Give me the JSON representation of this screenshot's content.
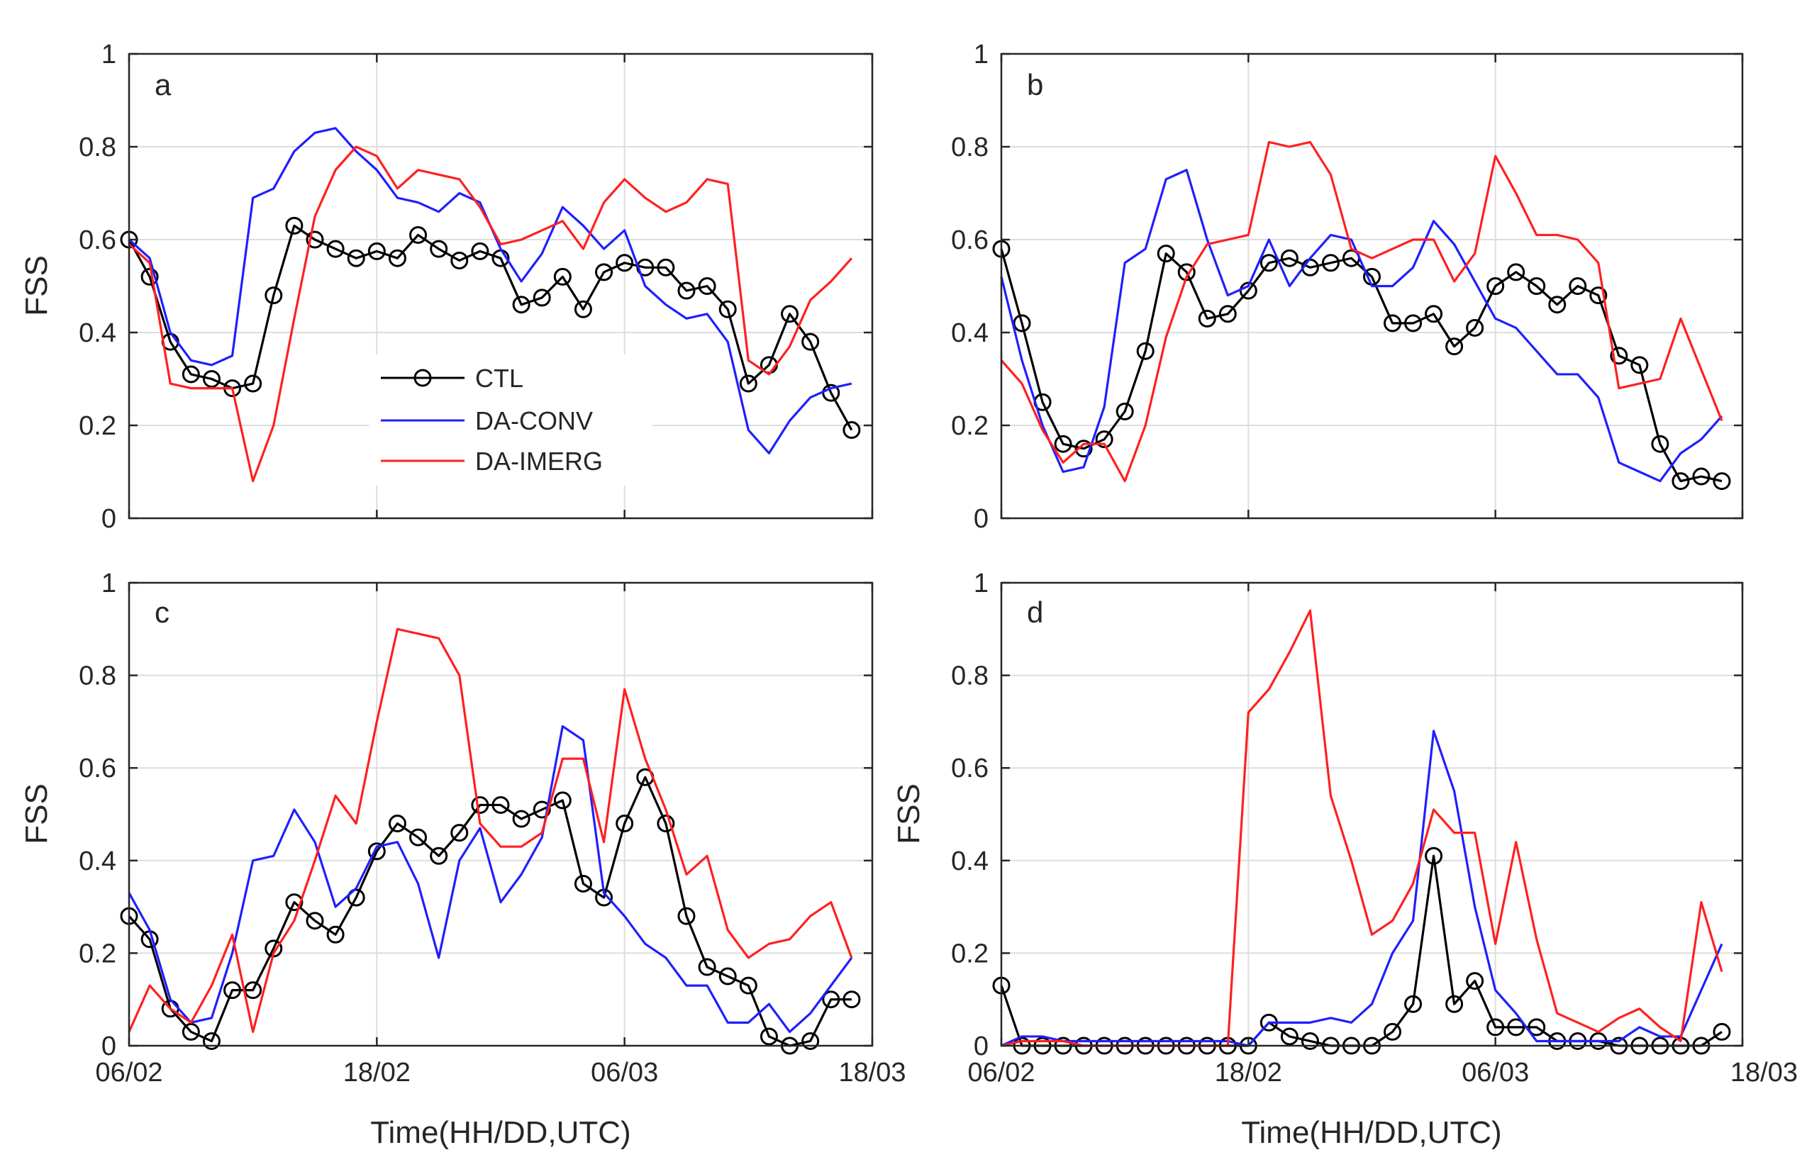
{
  "chart_data": [
    {
      "type": "line",
      "panel_label": "a",
      "ylabel": "FSS",
      "xlabel": "",
      "ylim": [
        0,
        1
      ],
      "yticks": [
        0,
        0.2,
        0.4,
        0.6,
        0.8,
        1
      ],
      "ytick_labels": [
        "0",
        "0.2",
        "0.4",
        "0.6",
        "0.8",
        "1"
      ],
      "xlim": [
        0,
        36
      ],
      "xticks": [
        0,
        12,
        24,
        36
      ],
      "xtick_labels": [],
      "grid": true,
      "legend": {
        "position": "center-left",
        "entries": [
          "CTL",
          "DA-CONV",
          "DA-IMERG"
        ]
      },
      "series": [
        {
          "name": "CTL",
          "color": "#000000",
          "marker": "circle",
          "values": [
            0.6,
            0.52,
            0.38,
            0.31,
            0.3,
            0.28,
            0.29,
            0.48,
            0.63,
            0.6,
            0.58,
            0.56,
            0.575,
            0.56,
            0.61,
            0.58,
            0.555,
            0.575,
            0.56,
            0.46,
            0.475,
            0.52,
            0.45,
            0.53,
            0.55,
            0.54,
            0.54,
            0.49,
            0.5,
            0.45,
            0.29,
            0.33,
            0.44,
            0.38,
            0.27,
            0.19
          ]
        },
        {
          "name": "DA-CONV",
          "color": "#1f1fff",
          "marker": "none",
          "values": [
            0.6,
            0.56,
            0.4,
            0.34,
            0.33,
            0.35,
            0.69,
            0.71,
            0.79,
            0.83,
            0.84,
            0.79,
            0.75,
            0.69,
            0.68,
            0.66,
            0.7,
            0.68,
            0.58,
            0.51,
            0.57,
            0.67,
            0.63,
            0.58,
            0.62,
            0.5,
            0.46,
            0.43,
            0.44,
            0.38,
            0.19,
            0.14,
            0.21,
            0.26,
            0.28,
            0.29
          ]
        },
        {
          "name": "DA-IMERG",
          "color": "#ff2020",
          "marker": "none",
          "values": [
            0.59,
            0.55,
            0.29,
            0.28,
            0.28,
            0.28,
            0.08,
            0.2,
            0.43,
            0.65,
            0.75,
            0.8,
            0.78,
            0.71,
            0.75,
            0.74,
            0.73,
            0.67,
            0.59,
            0.6,
            0.62,
            0.64,
            0.58,
            0.68,
            0.73,
            0.69,
            0.66,
            0.68,
            0.73,
            0.72,
            0.34,
            0.31,
            0.37,
            0.47,
            0.51,
            0.56
          ]
        }
      ]
    },
    {
      "type": "line",
      "panel_label": "b",
      "ylabel": "",
      "xlabel": "",
      "ylim": [
        0,
        1
      ],
      "yticks": [
        0,
        0.2,
        0.4,
        0.6,
        0.8,
        1
      ],
      "ytick_labels": [
        "0",
        "0.2",
        "0.4",
        "0.6",
        "0.8",
        "1"
      ],
      "xlim": [
        0,
        36
      ],
      "xticks": [
        0,
        12,
        24,
        36
      ],
      "xtick_labels": [],
      "grid": true,
      "series": [
        {
          "name": "CTL",
          "color": "#000000",
          "marker": "circle",
          "values": [
            0.58,
            0.42,
            0.25,
            0.16,
            0.15,
            0.17,
            0.23,
            0.36,
            0.57,
            0.53,
            0.43,
            0.44,
            0.49,
            0.55,
            0.56,
            0.54,
            0.55,
            0.56,
            0.52,
            0.42,
            0.42,
            0.44,
            0.37,
            0.41,
            0.5,
            0.53,
            0.5,
            0.46,
            0.5,
            0.48,
            0.35,
            0.33,
            0.16,
            0.08,
            0.09,
            0.08
          ]
        },
        {
          "name": "DA-CONV",
          "color": "#1f1fff",
          "marker": "none",
          "values": [
            0.52,
            0.34,
            0.2,
            0.1,
            0.11,
            0.24,
            0.55,
            0.58,
            0.73,
            0.75,
            0.6,
            0.48,
            0.5,
            0.6,
            0.5,
            0.56,
            0.61,
            0.6,
            0.5,
            0.5,
            0.54,
            0.64,
            0.59,
            0.51,
            0.43,
            0.41,
            0.36,
            0.31,
            0.31,
            0.26,
            0.12,
            0.1,
            0.08,
            0.14,
            0.17,
            0.22
          ]
        },
        {
          "name": "DA-IMERG",
          "color": "#ff2020",
          "marker": "none",
          "values": [
            0.34,
            0.29,
            0.19,
            0.12,
            0.16,
            0.16,
            0.08,
            0.2,
            0.39,
            0.52,
            0.59,
            0.6,
            0.61,
            0.81,
            0.8,
            0.81,
            0.74,
            0.58,
            0.56,
            0.58,
            0.6,
            0.6,
            0.51,
            0.57,
            0.78,
            0.7,
            0.61,
            0.61,
            0.6,
            0.55,
            0.28,
            0.29,
            0.3,
            0.43,
            0.32,
            0.21
          ]
        }
      ]
    },
    {
      "type": "line",
      "panel_label": "c",
      "ylabel": "FSS",
      "xlabel": "Time(HH/DD,UTC)",
      "ylim": [
        0,
        1
      ],
      "yticks": [
        0,
        0.2,
        0.4,
        0.6,
        0.8,
        1
      ],
      "ytick_labels": [
        "0",
        "0.2",
        "0.4",
        "0.6",
        "0.8",
        "1"
      ],
      "xlim": [
        0,
        36
      ],
      "xticks": [
        0,
        12,
        24,
        36
      ],
      "xtick_labels": [
        "06/02",
        "18/02",
        "06/03",
        "18/03"
      ],
      "grid": true,
      "series": [
        {
          "name": "CTL",
          "color": "#000000",
          "marker": "circle",
          "values": [
            0.28,
            0.23,
            0.08,
            0.03,
            0.01,
            0.12,
            0.12,
            0.21,
            0.31,
            0.27,
            0.24,
            0.32,
            0.42,
            0.48,
            0.45,
            0.41,
            0.46,
            0.52,
            0.52,
            0.49,
            0.51,
            0.53,
            0.35,
            0.32,
            0.48,
            0.58,
            0.48,
            0.28,
            0.17,
            0.15,
            0.13,
            0.02,
            0.0,
            0.01,
            0.1,
            0.1
          ]
        },
        {
          "name": "DA-CONV",
          "color": "#1f1fff",
          "marker": "none",
          "values": [
            0.33,
            0.25,
            0.1,
            0.05,
            0.06,
            0.2,
            0.4,
            0.41,
            0.51,
            0.44,
            0.3,
            0.34,
            0.43,
            0.44,
            0.35,
            0.19,
            0.4,
            0.47,
            0.31,
            0.37,
            0.45,
            0.69,
            0.66,
            0.33,
            0.28,
            0.22,
            0.19,
            0.13,
            0.13,
            0.05,
            0.05,
            0.09,
            0.03,
            0.07,
            0.13,
            0.19
          ]
        },
        {
          "name": "DA-IMERG",
          "color": "#ff2020",
          "marker": "none",
          "values": [
            0.03,
            0.13,
            0.08,
            0.05,
            0.13,
            0.24,
            0.03,
            0.2,
            0.27,
            0.4,
            0.54,
            0.48,
            0.7,
            0.9,
            0.89,
            0.88,
            0.8,
            0.48,
            0.43,
            0.43,
            0.46,
            0.62,
            0.62,
            0.44,
            0.77,
            0.62,
            0.51,
            0.37,
            0.41,
            0.25,
            0.19,
            0.22,
            0.23,
            0.28,
            0.31,
            0.19
          ]
        }
      ]
    },
    {
      "type": "line",
      "panel_label": "d",
      "ylabel": "FSS",
      "xlabel": "Time(HH/DD,UTC)",
      "ylim": [
        0,
        1
      ],
      "yticks": [
        0,
        0.2,
        0.4,
        0.6,
        0.8,
        1
      ],
      "ytick_labels": [
        "0",
        "0.2",
        "0.4",
        "0.6",
        "0.8",
        "1"
      ],
      "xlim": [
        0,
        36
      ],
      "xticks": [
        0,
        12,
        24,
        36
      ],
      "xtick_labels": [
        "06/02",
        "18/02",
        "06/03",
        "18/03"
      ],
      "grid": true,
      "series": [
        {
          "name": "CTL",
          "color": "#000000",
          "marker": "circle",
          "values": [
            0.13,
            0.0,
            0.0,
            0.0,
            0.0,
            0.0,
            0.0,
            0.0,
            0.0,
            0.0,
            0.0,
            0.0,
            0.0,
            0.05,
            0.02,
            0.01,
            0.0,
            0.0,
            0.0,
            0.03,
            0.09,
            0.41,
            0.09,
            0.14,
            0.04,
            0.04,
            0.04,
            0.01,
            0.01,
            0.01,
            0.0,
            0.0,
            0.0,
            0.0,
            0.0,
            0.03
          ]
        },
        {
          "name": "DA-CONV",
          "color": "#1f1fff",
          "marker": "none",
          "values": [
            0.0,
            0.02,
            0.02,
            0.01,
            0.01,
            0.01,
            0.01,
            0.01,
            0.01,
            0.01,
            0.01,
            0.01,
            0.0,
            0.05,
            0.05,
            0.05,
            0.06,
            0.05,
            0.09,
            0.2,
            0.27,
            0.68,
            0.55,
            0.3,
            0.12,
            0.07,
            0.01,
            0.01,
            0.01,
            0.01,
            0.01,
            0.04,
            0.02,
            0.02,
            0.12,
            0.22
          ]
        },
        {
          "name": "DA-IMERG",
          "color": "#ff2020",
          "marker": "none",
          "values": [
            0.0,
            0.01,
            0.01,
            0.01,
            0.0,
            0.0,
            0.0,
            0.0,
            0.0,
            0.0,
            0.0,
            0.0,
            0.72,
            0.77,
            0.85,
            0.94,
            0.54,
            0.4,
            0.24,
            0.27,
            0.35,
            0.51,
            0.46,
            0.46,
            0.22,
            0.44,
            0.23,
            0.07,
            0.05,
            0.03,
            0.06,
            0.08,
            0.04,
            0.01,
            0.31,
            0.16
          ]
        }
      ]
    }
  ]
}
